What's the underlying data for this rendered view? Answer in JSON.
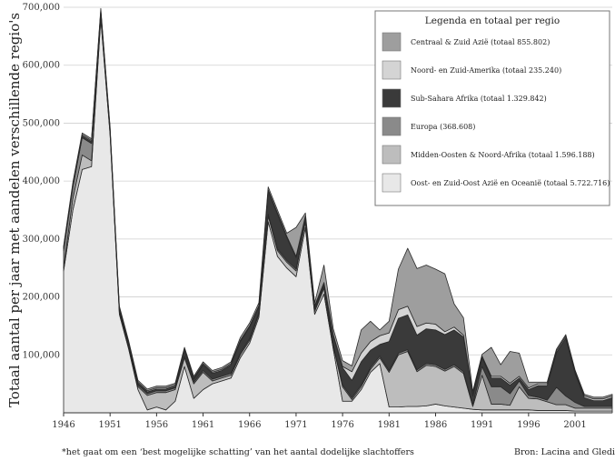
{
  "chart_data": {
    "type": "area",
    "stacked": true,
    "ylabel": "Totaal aantal per jaar met aandelen verschillende regio's",
    "xlabel": "",
    "xlim": [
      1946,
      2005
    ],
    "ylim": [
      0,
      700000
    ],
    "x_ticks": [
      "1946",
      "1951",
      "1956",
      "1961",
      "1966",
      "1971",
      "1976",
      "1981",
      "1986",
      "1991",
      "1996",
      "2001"
    ],
    "y_ticks": [
      "100,000",
      "200,000",
      "300,000",
      "400,000",
      "500,000",
      "600,000",
      "700,000"
    ],
    "y_tick_values": [
      100000,
      200000,
      300000,
      400000,
      500000,
      600000,
      700000
    ],
    "legend_title": "Legenda en totaal per regio",
    "legend_position": "top-right",
    "grid": true,
    "x": [
      1946,
      1947,
      1948,
      1949,
      1950,
      1951,
      1952,
      1953,
      1954,
      1955,
      1956,
      1957,
      1958,
      1959,
      1960,
      1961,
      1962,
      1963,
      1964,
      1965,
      1966,
      1967,
      1968,
      1969,
      1970,
      1971,
      1972,
      1973,
      1974,
      1975,
      1976,
      1977,
      1978,
      1979,
      1980,
      1981,
      1982,
      1983,
      1984,
      1985,
      1986,
      1987,
      1988,
      1989,
      1990,
      1991,
      1992,
      1993,
      1994,
      1995,
      1996,
      1997,
      1998,
      1999,
      2000,
      2001,
      2002,
      2003,
      2004,
      2005
    ],
    "series": [
      {
        "name": "Oost- en Zuid-Oost Azië en Oceanië (totaal 5.722.716)",
        "color": "#e8e8e8",
        "values": [
          245000,
          350000,
          420000,
          425000,
          680000,
          480000,
          170000,
          110000,
          40000,
          5000,
          10000,
          5000,
          20000,
          80000,
          25000,
          40000,
          50000,
          55000,
          60000,
          95000,
          120000,
          165000,
          330000,
          270000,
          250000,
          235000,
          320000,
          170000,
          205000,
          110000,
          20000,
          20000,
          40000,
          70000,
          85000,
          10000,
          10000,
          11000,
          11000,
          12000,
          15000,
          12000,
          10000,
          8000,
          6000,
          5000,
          5000,
          5000,
          5000,
          5000,
          5000,
          4000,
          4000,
          4000,
          4000,
          3000,
          3000,
          3000,
          3000,
          3000
        ]
      },
      {
        "name": "Midden-Oosten & Noord-Afrika (totaal 1.596.188)",
        "color": "#bdbdbd",
        "values": [
          5000,
          20000,
          25000,
          10000,
          5000,
          3000,
          3000,
          3000,
          5000,
          25000,
          25000,
          30000,
          20000,
          15000,
          25000,
          30000,
          5000,
          5000,
          5000,
          5000,
          5000,
          5000,
          10000,
          10000,
          10000,
          10000,
          10000,
          5000,
          10000,
          5000,
          25000,
          3000,
          5000,
          5000,
          10000,
          60000,
          90000,
          95000,
          60000,
          70000,
          65000,
          60000,
          70000,
          60000,
          5000,
          60000,
          10000,
          10000,
          8000,
          40000,
          20000,
          20000,
          15000,
          10000,
          10000,
          5000,
          5000,
          5000,
          5000,
          5000
        ]
      },
      {
        "name": "Europa (368.608)",
        "color": "#8a8a8a",
        "values": [
          30000,
          20000,
          30000,
          30000,
          5000,
          3000,
          3000,
          3000,
          3000,
          3000,
          3000,
          3000,
          3000,
          3000,
          3000,
          3000,
          3000,
          3000,
          3000,
          3000,
          3000,
          3000,
          3000,
          3000,
          3000,
          3000,
          3000,
          3000,
          3000,
          3000,
          3000,
          3000,
          3000,
          3000,
          3000,
          3000,
          3000,
          3000,
          3000,
          3000,
          3000,
          3000,
          3000,
          3000,
          3000,
          15000,
          30000,
          30000,
          20000,
          10000,
          5000,
          3000,
          3000,
          30000,
          15000,
          10000,
          3000,
          3000,
          3000,
          3000
        ]
      },
      {
        "name": "Sub-Sahara Afrika (totaal 1.329.842)",
        "color": "#3a3a3a",
        "values": [
          3000,
          3000,
          3000,
          3000,
          3000,
          3000,
          3000,
          3000,
          3000,
          3000,
          3000,
          3000,
          3000,
          10000,
          5000,
          10000,
          10000,
          10000,
          15000,
          20000,
          20000,
          10000,
          40000,
          60000,
          40000,
          20000,
          5000,
          5000,
          5000,
          15000,
          30000,
          30000,
          40000,
          30000,
          20000,
          50000,
          60000,
          60000,
          60000,
          60000,
          60000,
          60000,
          60000,
          60000,
          15000,
          15000,
          15000,
          15000,
          15000,
          5000,
          10000,
          20000,
          25000,
          60000,
          100000,
          50000,
          15000,
          10000,
          10000,
          15000
        ]
      },
      {
        "name": "Noord- en Zuid-Amerika (totaal 235.240)",
        "color": "#d4d4d4",
        "values": [
          2000,
          2000,
          2000,
          2000,
          2000,
          2000,
          2000,
          2000,
          2000,
          2000,
          2000,
          2000,
          2000,
          2000,
          2000,
          2000,
          2000,
          2000,
          2000,
          2000,
          2000,
          2000,
          2000,
          2000,
          2000,
          2000,
          2000,
          2000,
          2000,
          2000,
          2000,
          15000,
          15000,
          15000,
          15000,
          15000,
          15000,
          15000,
          15000,
          10000,
          10000,
          5000,
          5000,
          3000,
          3000,
          3000,
          3000,
          3000,
          3000,
          3000,
          3000,
          3000,
          3000,
          3000,
          3000,
          3000,
          3000,
          3000,
          3000,
          3000
        ]
      },
      {
        "name": "Centraal & Zuid Azië (totaal 855.802)",
        "color": "#9e9e9e",
        "values": [
          3000,
          3000,
          3000,
          3000,
          3000,
          3000,
          3000,
          3000,
          3000,
          3000,
          3000,
          3000,
          3000,
          3000,
          3000,
          3000,
          3000,
          3000,
          3000,
          5000,
          5000,
          5000,
          5000,
          5000,
          5000,
          50000,
          5000,
          5000,
          30000,
          10000,
          10000,
          10000,
          40000,
          35000,
          10000,
          20000,
          70000,
          100000,
          100000,
          100000,
          95000,
          100000,
          40000,
          30000,
          5000,
          3000,
          50000,
          20000,
          55000,
          40000,
          10000,
          3000,
          3000,
          3000,
          3000,
          3000,
          3000,
          3000,
          3000,
          3000
        ]
      }
    ]
  },
  "footnote_left": "*het gaat om een ‘best mogelijke schatting’ van het aantal dodelijke slachtoffers",
  "footnote_right": "Bron: Lacina and Gleditsc"
}
